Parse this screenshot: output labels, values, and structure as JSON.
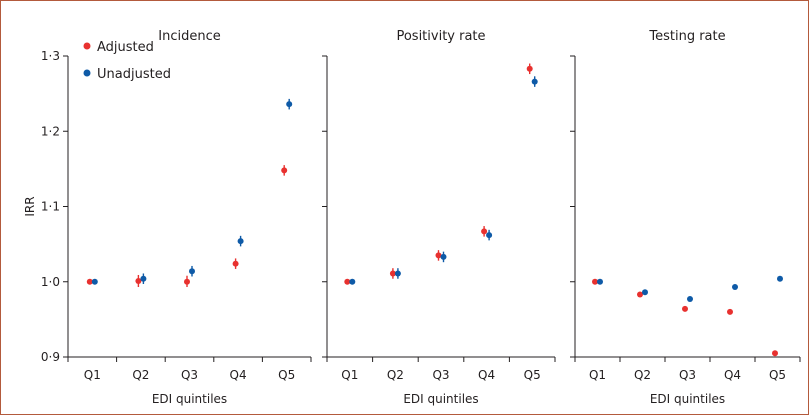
{
  "chart_data": {
    "type": "scatter",
    "style": "point estimates with 95% CI error bars, three small-multiple panels sharing the y axis",
    "ylabel": "IRR",
    "xlabel": "EDI quintiles",
    "categories": [
      "Q1",
      "Q2",
      "Q3",
      "Q4",
      "Q5"
    ],
    "ylim": [
      0.9,
      1.3
    ],
    "yticks": [
      0.9,
      1.0,
      1.1,
      1.2,
      1.3
    ],
    "ytick_labels": [
      "0·9",
      "1·0",
      "1·1",
      "1·2",
      "1·3"
    ],
    "legend": {
      "placement": "top-left",
      "entries": [
        {
          "name": "Adjusted",
          "color": "#e8312f"
        },
        {
          "name": "Unadjusted",
          "color": "#0e5aa7"
        }
      ]
    },
    "panels": [
      {
        "title": "Incidence",
        "series": [
          {
            "name": "Adjusted",
            "color": "#e8312f",
            "values": [
              1.0,
              1.001,
              1.0,
              1.024,
              1.148
            ],
            "lower": [
              1.0,
              0.993,
              0.993,
              1.017,
              1.141
            ],
            "upper": [
              1.0,
              1.009,
              1.008,
              1.031,
              1.155
            ]
          },
          {
            "name": "Unadjusted",
            "color": "#0e5aa7",
            "values": [
              1.0,
              1.004,
              1.014,
              1.054,
              1.236
            ],
            "lower": [
              1.0,
              0.997,
              1.007,
              1.047,
              1.229
            ],
            "upper": [
              1.0,
              1.011,
              1.021,
              1.061,
              1.243
            ]
          }
        ]
      },
      {
        "title": "Positivity rate",
        "series": [
          {
            "name": "Adjusted",
            "color": "#e8312f",
            "values": [
              1.0,
              1.011,
              1.035,
              1.067,
              1.283
            ],
            "lower": [
              1.0,
              1.004,
              1.028,
              1.06,
              1.276
            ],
            "upper": [
              1.0,
              1.018,
              1.042,
              1.074,
              1.29
            ]
          },
          {
            "name": "Unadjusted",
            "color": "#0e5aa7",
            "values": [
              1.0,
              1.011,
              1.033,
              1.062,
              1.266
            ],
            "lower": [
              1.0,
              1.004,
              1.026,
              1.055,
              1.259
            ],
            "upper": [
              1.0,
              1.018,
              1.04,
              1.069,
              1.273
            ]
          }
        ]
      },
      {
        "title": "Testing rate",
        "series": [
          {
            "name": "Adjusted",
            "color": "#e8312f",
            "values": [
              1.0,
              0.983,
              0.964,
              0.96,
              0.905
            ],
            "lower": [
              1.0,
              0.982,
              0.963,
              0.959,
              0.904
            ],
            "upper": [
              1.0,
              0.984,
              0.965,
              0.961,
              0.906
            ]
          },
          {
            "name": "Unadjusted",
            "color": "#0e5aa7",
            "values": [
              1.0,
              0.986,
              0.977,
              0.993,
              1.004
            ],
            "lower": [
              1.0,
              0.985,
              0.976,
              0.992,
              1.003
            ],
            "upper": [
              1.0,
              0.987,
              0.978,
              0.994,
              1.005
            ]
          }
        ]
      }
    ]
  },
  "colors": {
    "frame": "#b35a3c",
    "axis": "#231f20",
    "adjusted": "#e8312f",
    "unadjusted": "#0e5aa7"
  }
}
